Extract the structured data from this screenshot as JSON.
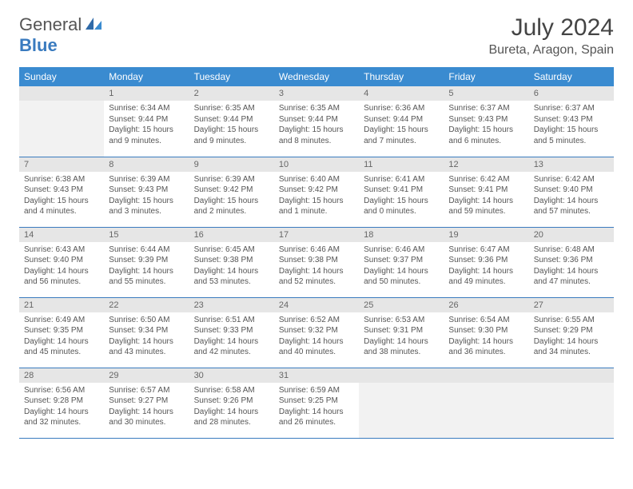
{
  "brand": {
    "word1": "General",
    "word2": "Blue"
  },
  "title": "July 2024",
  "location": "Bureta, Aragon, Spain",
  "colors": {
    "header_bg": "#3a8bd0",
    "header_text": "#ffffff",
    "daynum_bg": "#e6e6e6",
    "border": "#3a7bbf",
    "logo_blue": "#3a7bbf",
    "body_text": "#555555"
  },
  "weekdays": [
    "Sunday",
    "Monday",
    "Tuesday",
    "Wednesday",
    "Thursday",
    "Friday",
    "Saturday"
  ],
  "first_weekday_index": 1,
  "days": [
    {
      "n": 1,
      "sunrise": "6:34 AM",
      "sunset": "9:44 PM",
      "daylight": "15 hours and 9 minutes."
    },
    {
      "n": 2,
      "sunrise": "6:35 AM",
      "sunset": "9:44 PM",
      "daylight": "15 hours and 9 minutes."
    },
    {
      "n": 3,
      "sunrise": "6:35 AM",
      "sunset": "9:44 PM",
      "daylight": "15 hours and 8 minutes."
    },
    {
      "n": 4,
      "sunrise": "6:36 AM",
      "sunset": "9:44 PM",
      "daylight": "15 hours and 7 minutes."
    },
    {
      "n": 5,
      "sunrise": "6:37 AM",
      "sunset": "9:43 PM",
      "daylight": "15 hours and 6 minutes."
    },
    {
      "n": 6,
      "sunrise": "6:37 AM",
      "sunset": "9:43 PM",
      "daylight": "15 hours and 5 minutes."
    },
    {
      "n": 7,
      "sunrise": "6:38 AM",
      "sunset": "9:43 PM",
      "daylight": "15 hours and 4 minutes."
    },
    {
      "n": 8,
      "sunrise": "6:39 AM",
      "sunset": "9:43 PM",
      "daylight": "15 hours and 3 minutes."
    },
    {
      "n": 9,
      "sunrise": "6:39 AM",
      "sunset": "9:42 PM",
      "daylight": "15 hours and 2 minutes."
    },
    {
      "n": 10,
      "sunrise": "6:40 AM",
      "sunset": "9:42 PM",
      "daylight": "15 hours and 1 minute."
    },
    {
      "n": 11,
      "sunrise": "6:41 AM",
      "sunset": "9:41 PM",
      "daylight": "15 hours and 0 minutes."
    },
    {
      "n": 12,
      "sunrise": "6:42 AM",
      "sunset": "9:41 PM",
      "daylight": "14 hours and 59 minutes."
    },
    {
      "n": 13,
      "sunrise": "6:42 AM",
      "sunset": "9:40 PM",
      "daylight": "14 hours and 57 minutes."
    },
    {
      "n": 14,
      "sunrise": "6:43 AM",
      "sunset": "9:40 PM",
      "daylight": "14 hours and 56 minutes."
    },
    {
      "n": 15,
      "sunrise": "6:44 AM",
      "sunset": "9:39 PM",
      "daylight": "14 hours and 55 minutes."
    },
    {
      "n": 16,
      "sunrise": "6:45 AM",
      "sunset": "9:38 PM",
      "daylight": "14 hours and 53 minutes."
    },
    {
      "n": 17,
      "sunrise": "6:46 AM",
      "sunset": "9:38 PM",
      "daylight": "14 hours and 52 minutes."
    },
    {
      "n": 18,
      "sunrise": "6:46 AM",
      "sunset": "9:37 PM",
      "daylight": "14 hours and 50 minutes."
    },
    {
      "n": 19,
      "sunrise": "6:47 AM",
      "sunset": "9:36 PM",
      "daylight": "14 hours and 49 minutes."
    },
    {
      "n": 20,
      "sunrise": "6:48 AM",
      "sunset": "9:36 PM",
      "daylight": "14 hours and 47 minutes."
    },
    {
      "n": 21,
      "sunrise": "6:49 AM",
      "sunset": "9:35 PM",
      "daylight": "14 hours and 45 minutes."
    },
    {
      "n": 22,
      "sunrise": "6:50 AM",
      "sunset": "9:34 PM",
      "daylight": "14 hours and 43 minutes."
    },
    {
      "n": 23,
      "sunrise": "6:51 AM",
      "sunset": "9:33 PM",
      "daylight": "14 hours and 42 minutes."
    },
    {
      "n": 24,
      "sunrise": "6:52 AM",
      "sunset": "9:32 PM",
      "daylight": "14 hours and 40 minutes."
    },
    {
      "n": 25,
      "sunrise": "6:53 AM",
      "sunset": "9:31 PM",
      "daylight": "14 hours and 38 minutes."
    },
    {
      "n": 26,
      "sunrise": "6:54 AM",
      "sunset": "9:30 PM",
      "daylight": "14 hours and 36 minutes."
    },
    {
      "n": 27,
      "sunrise": "6:55 AM",
      "sunset": "9:29 PM",
      "daylight": "14 hours and 34 minutes."
    },
    {
      "n": 28,
      "sunrise": "6:56 AM",
      "sunset": "9:28 PM",
      "daylight": "14 hours and 32 minutes."
    },
    {
      "n": 29,
      "sunrise": "6:57 AM",
      "sunset": "9:27 PM",
      "daylight": "14 hours and 30 minutes."
    },
    {
      "n": 30,
      "sunrise": "6:58 AM",
      "sunset": "9:26 PM",
      "daylight": "14 hours and 28 minutes."
    },
    {
      "n": 31,
      "sunrise": "6:59 AM",
      "sunset": "9:25 PM",
      "daylight": "14 hours and 26 minutes."
    }
  ],
  "labels": {
    "sunrise": "Sunrise:",
    "sunset": "Sunset:",
    "daylight": "Daylight:"
  }
}
